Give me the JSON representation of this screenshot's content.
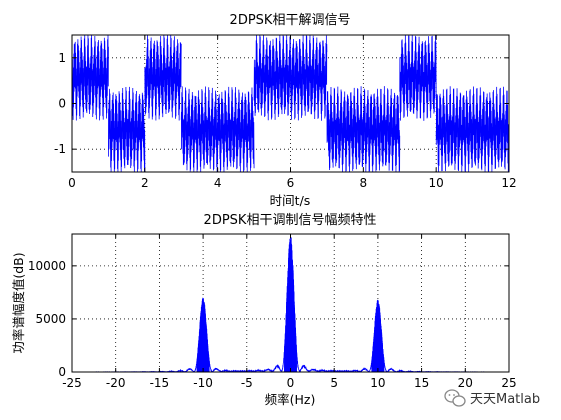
{
  "chart_data": [
    {
      "type": "line",
      "title": "2DPSK相干解调信号",
      "xlabel": "时间t/s",
      "ylabel": "",
      "xlim": [
        0,
        12
      ],
      "ylim": [
        -1.5,
        1.5
      ],
      "xticks": [
        0,
        2,
        4,
        6,
        8,
        10,
        12
      ],
      "yticks": [
        -1,
        0,
        1
      ],
      "grid": true,
      "line_color": "#0000ff",
      "segments": [
        {
          "t0": 0,
          "t1": 1,
          "level": 1
        },
        {
          "t0": 1,
          "t1": 2,
          "level": -1
        },
        {
          "t0": 2,
          "t1": 3,
          "level": 1
        },
        {
          "t0": 3,
          "t1": 5,
          "level": -1
        },
        {
          "t0": 5,
          "t1": 7,
          "level": 1
        },
        {
          "t0": 7,
          "t1": 9,
          "level": -1
        },
        {
          "t0": 9,
          "t1": 10,
          "level": 1
        },
        {
          "t0": 10,
          "t1": 12,
          "level": -1
        }
      ]
    },
    {
      "type": "line",
      "title": "2DPSK相干调制信号幅频特性",
      "xlabel": "频率(Hz)",
      "ylabel": "功率谱幅度值(dB)",
      "xlim": [
        -25,
        25
      ],
      "ylim": [
        0,
        13000
      ],
      "xticks": [
        -25,
        -20,
        -15,
        -10,
        -5,
        0,
        5,
        10,
        15,
        20,
        25
      ],
      "yticks": [
        0,
        5000,
        10000
      ],
      "grid": true,
      "line_color": "#0000ff",
      "peaks": [
        {
          "f": 0,
          "value": 12800
        },
        {
          "f": -10,
          "value": 7000
        },
        {
          "f": 10,
          "value": 6800
        }
      ]
    }
  ],
  "watermark": {
    "icon": "wechat-icon",
    "text": "天天Matlab"
  }
}
